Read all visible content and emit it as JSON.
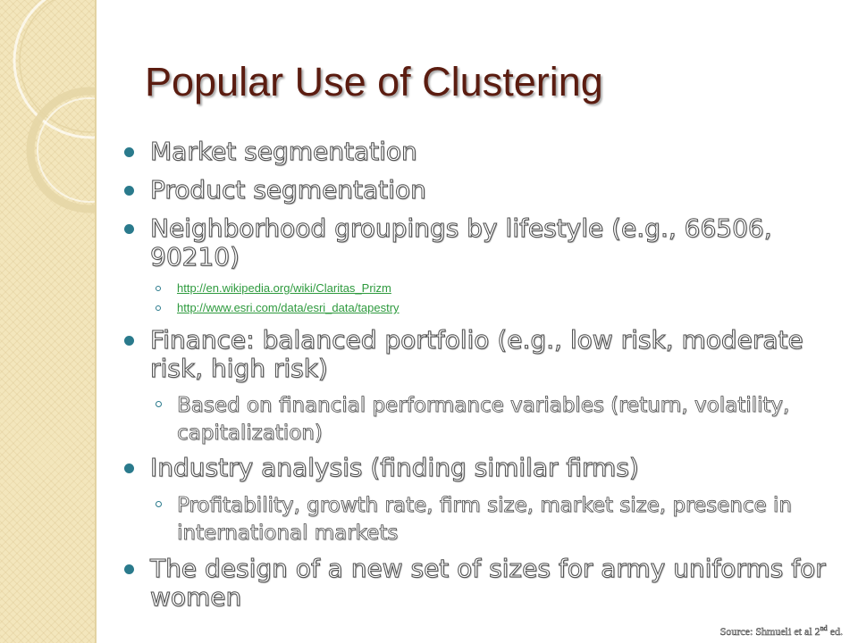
{
  "slide": {
    "title": "Popular Use of Clustering",
    "bullets": [
      {
        "text": "Market segmentation"
      },
      {
        "text": "Product segmentation"
      },
      {
        "text": "Neighborhood groupings by lifestyle (e.g., 66506, 90210)"
      },
      {
        "sub": [
          {
            "link": "http://en.wikipedia.org/wiki/Claritas_Prizm"
          },
          {
            "link": "http://www.esri.com/data/esri_data/tapestry"
          }
        ]
      },
      {
        "text": "Finance: balanced portfolio (e.g., low risk, moderate risk, high risk)"
      },
      {
        "sub_text": "Based on financial performance variables (return, volatility, capitalization)"
      },
      {
        "text": "Industry analysis (finding similar firms)"
      },
      {
        "sub_text": "Profitability, growth rate, firm size, market size, presence in international markets"
      },
      {
        "text": "The design of a new set of sizes for army uniforms for women"
      }
    ],
    "source": {
      "prefix": "Source: Shmueli et al 2",
      "superscript": "nd",
      "suffix": " ed."
    }
  },
  "colors": {
    "title": "#5b1c10",
    "bullet": "#2a7a8c",
    "link": "#2e9a3e",
    "sidebar": "#f3e6bc"
  }
}
